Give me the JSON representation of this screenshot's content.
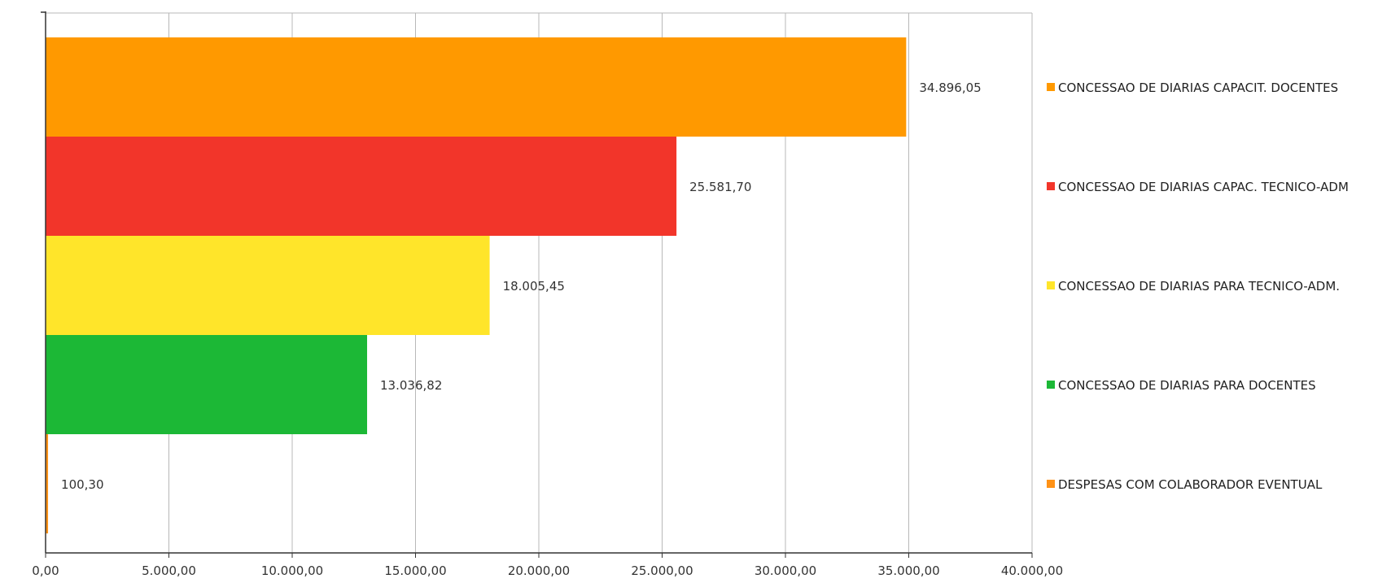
{
  "chart_data": {
    "type": "bar",
    "orientation": "horizontal",
    "categories": [
      "CONCESSAO DE DIARIAS CAPACIT. DOCENTES",
      "CONCESSAO DE DIARIAS CAPAC. TECNICO-ADM",
      "CONCESSAO DE DIARIAS PARA TECNICO-ADM.",
      "CONCESSAO DE DIARIAS PARA DOCENTES",
      "DESPESAS COM COLABORADOR EVENTUAL"
    ],
    "values": [
      34896.05,
      25581.7,
      18005.45,
      13036.82,
      100.3
    ],
    "data_labels": [
      "34.896,05",
      "25.581,70",
      "18.005,45",
      "13.036,82",
      "100,30"
    ],
    "colors": [
      "#ff9900",
      "#f2352a",
      "#ffe52a",
      "#1cb836",
      "#ff9216"
    ],
    "xlim": [
      0,
      40000
    ],
    "x_ticks": [
      0,
      5000,
      10000,
      15000,
      20000,
      25000,
      30000,
      35000,
      40000
    ],
    "x_tick_labels": [
      "0,00",
      "5.000,00",
      "10.000,00",
      "15.000,00",
      "20.000,00",
      "25.000,00",
      "30.000,00",
      "35.000,00",
      "40.000,00"
    ],
    "title": "",
    "xlabel": "",
    "ylabel": "",
    "grid": "vertical",
    "legend": "right"
  }
}
